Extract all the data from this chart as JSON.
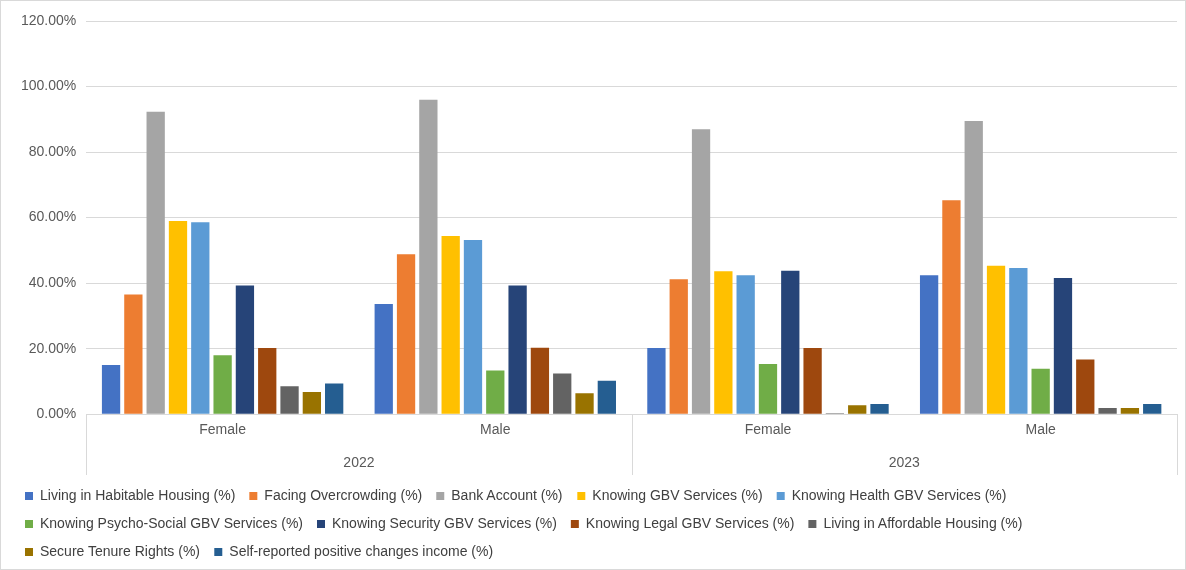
{
  "chart_data": {
    "type": "bar",
    "categories": [
      "Female",
      "Male",
      "Female",
      "Male"
    ],
    "annotations": [
      "2022",
      "2023"
    ],
    "series": [
      {
        "name": "Living in Habitable Housing (%)",
        "color": "#4472c4",
        "values": [
          15.0,
          33.6,
          20.2,
          42.4
        ]
      },
      {
        "name": "Facing Overcrowding (%)",
        "color": "#ed7d31",
        "values": [
          36.5,
          48.8,
          41.2,
          65.3
        ]
      },
      {
        "name": "Bank Account (%)",
        "color": "#a5a5a5",
        "values": [
          92.3,
          96.0,
          87.0,
          89.5
        ]
      },
      {
        "name": "Knowing GBV Services (%)",
        "color": "#ffc000",
        "values": [
          59.0,
          54.4,
          43.6,
          45.3
        ]
      },
      {
        "name": "Knowing Health GBV Services (%)",
        "color": "#5b9bd5",
        "values": [
          58.6,
          53.2,
          42.4,
          44.6
        ]
      },
      {
        "name": "Knowing Psycho-Social GBV Services (%)",
        "color": "#70ad47",
        "values": [
          18.0,
          13.3,
          15.3,
          13.9
        ]
      },
      {
        "name": "Knowing Security GBV Services (%)",
        "color": "#264478",
        "values": [
          39.3,
          39.3,
          43.8,
          41.6
        ]
      },
      {
        "name": "Knowing Legal GBV Services (%)",
        "color": "#9e480e",
        "values": [
          20.2,
          20.3,
          20.2,
          16.7
        ]
      },
      {
        "name": "Living in Affordable Housing (%)",
        "color": "#636363",
        "values": [
          8.5,
          12.4,
          0.3,
          1.9
        ]
      },
      {
        "name": "Secure Tenure Rights (%)",
        "color": "#997300",
        "values": [
          6.8,
          6.4,
          2.7,
          1.9
        ]
      },
      {
        "name": "Self-reported positive changes income (%)",
        "color": "#255e91",
        "values": [
          9.4,
          10.2,
          3.1,
          3.1
        ]
      }
    ],
    "ylim": [
      0,
      120
    ],
    "yticks": [
      {
        "value": 0,
        "label": "0.00%"
      },
      {
        "value": 20,
        "label": "20.00%"
      },
      {
        "value": 40,
        "label": "40.00%"
      },
      {
        "value": 60,
        "label": "60.00%"
      },
      {
        "value": 80,
        "label": "80.00%"
      },
      {
        "value": 100,
        "label": "100.00%"
      },
      {
        "value": 120,
        "label": "120.00%"
      }
    ],
    "grid": "y",
    "legend": "bottom"
  }
}
